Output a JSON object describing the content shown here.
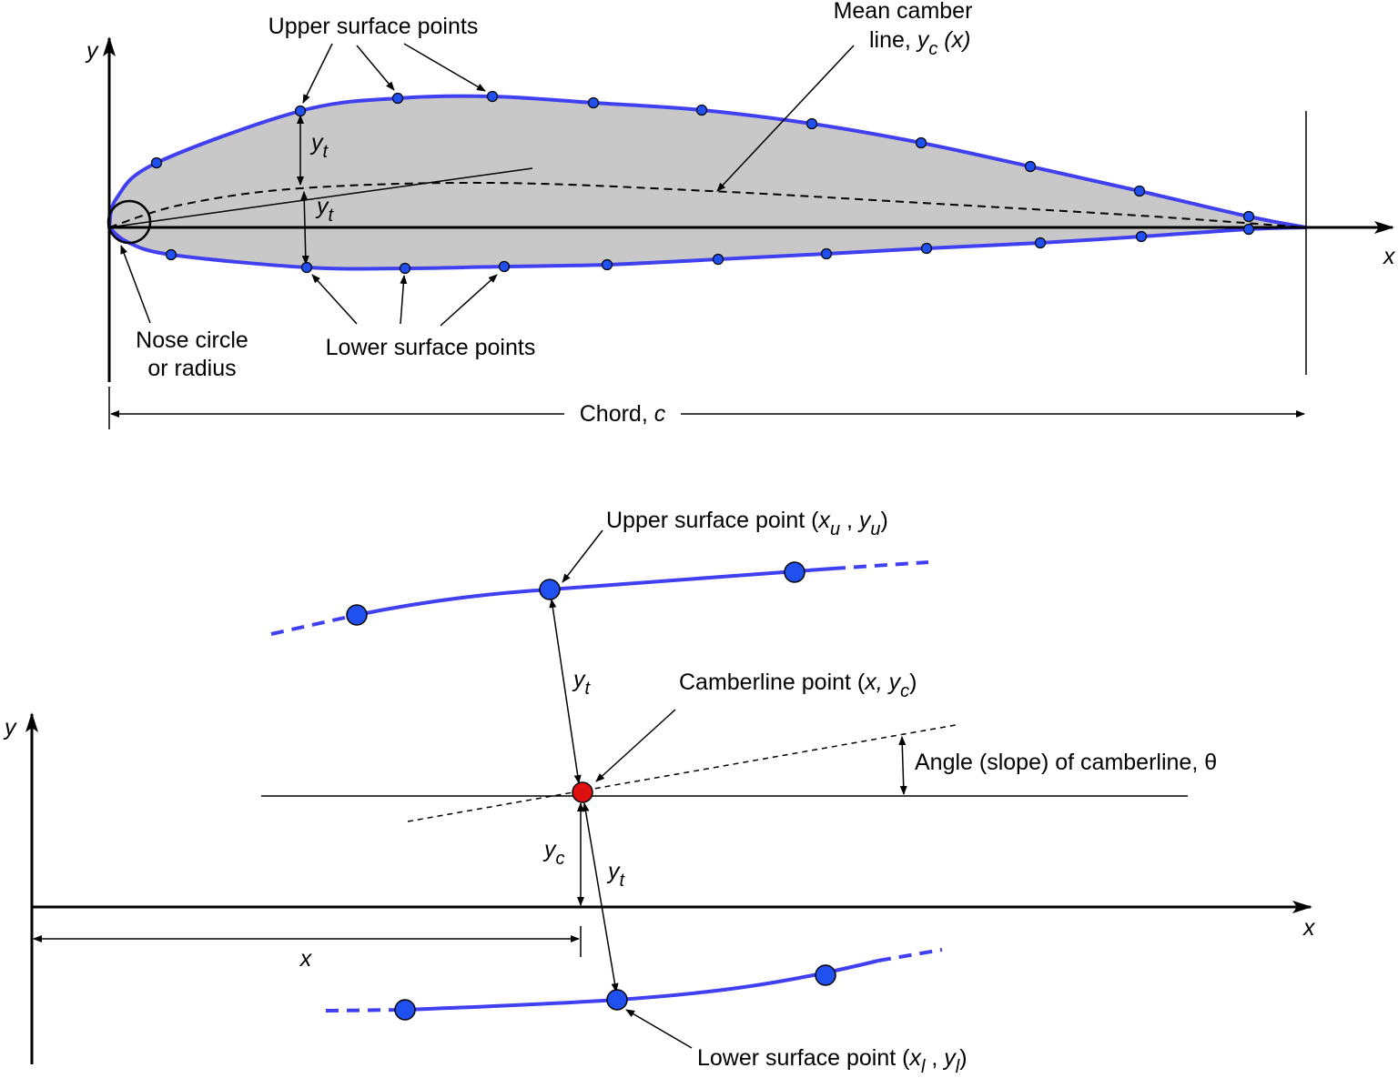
{
  "top": {
    "axis_y": "y",
    "axis_x": "x",
    "upper_label": "Upper surface points",
    "camber_label": {
      "line1": "Mean camber",
      "line2": "line,",
      "var": "y",
      "sub": "c",
      "arg": "(x)"
    },
    "yt_upper": {
      "var": "y",
      "sub": "t"
    },
    "yt_lower": {
      "var": "y",
      "sub": "t"
    },
    "nose_label": {
      "line1": "Nose circle",
      "line2": "or radius"
    },
    "lower_label": "Lower surface points",
    "chord_label": {
      "text": "Chord,",
      "var": "c"
    }
  },
  "bottom": {
    "axis_y": "y",
    "axis_x": "x",
    "upper_point": {
      "text": "Upper surface point (",
      "x": "x",
      "xsub": "u",
      "sep": " , ",
      "y": "y",
      "ysub": "u",
      "close": ")"
    },
    "camber_point": {
      "text": "Camberline point (",
      "x": "x,",
      "y": " y",
      "ysub": "c",
      "close": ")"
    },
    "angle_label": "Angle (slope) of camberline, θ",
    "yt_upper": {
      "var": "y",
      "sub": "t"
    },
    "yc": {
      "var": "y",
      "sub": "c"
    },
    "yt_lower": {
      "var": "y",
      "sub": "t"
    },
    "x_dim": "x",
    "lower_point": {
      "text": "Lower surface point (",
      "x": "x",
      "xsub": "l",
      "sep": " , ",
      "y": "y",
      "ysub": "l",
      "close": ")"
    }
  }
}
